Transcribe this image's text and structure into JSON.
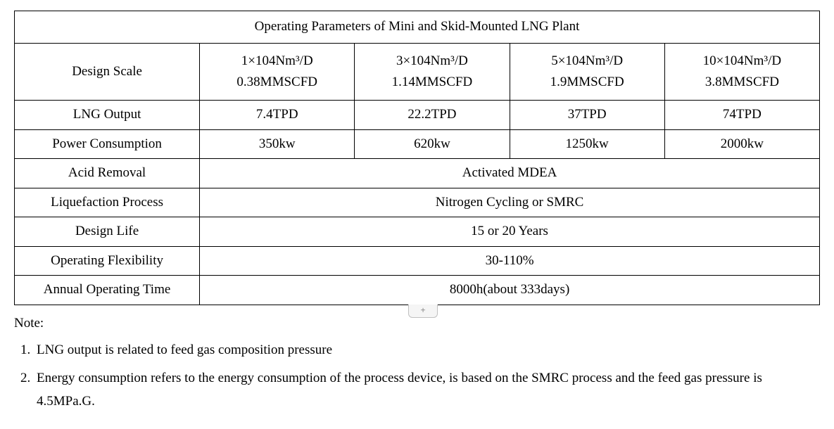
{
  "table": {
    "title": "Operating Parameters of Mini and Skid-Mounted LNG Plant",
    "design_scale_label": "Design Scale",
    "scales": {
      "c1_line1": "1×104Nm³/D",
      "c1_line2": "0.38MMSCFD",
      "c2_line1": "3×104Nm³/D",
      "c2_line2": "1.14MMSCFD",
      "c3_line1": "5×104Nm³/D",
      "c3_line2": "1.9MMSCFD",
      "c4_line1": "10×104Nm³/D",
      "c4_line2": "3.8MMSCFD"
    },
    "rows_multi": [
      {
        "label": "LNG Output",
        "c1": "7.4TPD",
        "c2": "22.2TPD",
        "c3": "37TPD",
        "c4": "74TPD"
      },
      {
        "label": "Power Consumption",
        "c1": "350kw",
        "c2": "620kw",
        "c3": "1250kw",
        "c4": "2000kw"
      }
    ],
    "rows_span": [
      {
        "label": "Acid Removal",
        "value": "Activated MDEA"
      },
      {
        "label": "Liquefaction Process",
        "value": "Nitrogen Cycling or SMRC"
      },
      {
        "label": "Design Life",
        "value": "15 or 20 Years"
      },
      {
        "label": "Operating Flexibility",
        "value": "30-110%"
      },
      {
        "label": "Annual Operating Time",
        "value": "8000h(about 333days)"
      }
    ]
  },
  "notes": {
    "heading": "Note:",
    "items": [
      "LNG output is related to feed gas composition pressure",
      "Energy consumption refers to the energy consumption of the process device, is based on the SMRC process and the feed gas pressure is 4.5MPa.G."
    ]
  },
  "add_tab": "+"
}
